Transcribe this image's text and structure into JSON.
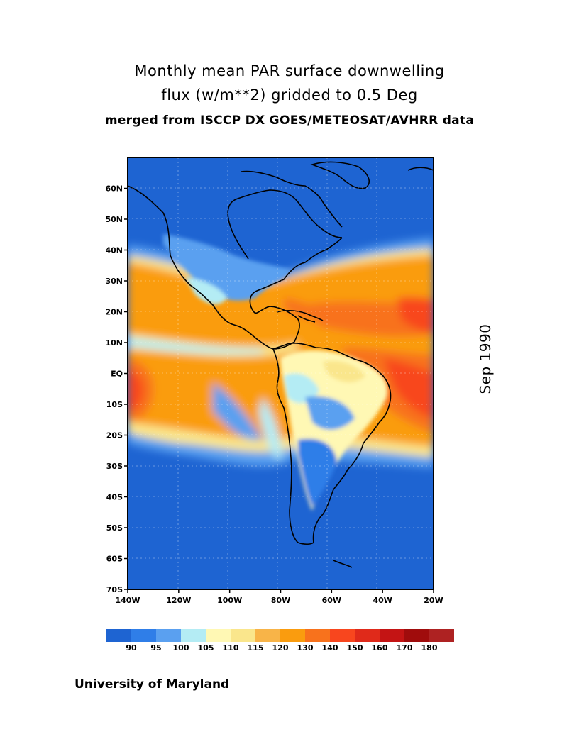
{
  "title": {
    "line1": "Monthly mean PAR surface downwelling",
    "line2": "flux (w/m**2) gridded to 0.5 Deg",
    "line3": "merged from ISCCP DX GOES/METEOSAT/AVHRR data"
  },
  "date_label": "Sep 1990",
  "footer": "University of Maryland",
  "map": {
    "lon_range": [
      -140,
      -20
    ],
    "lat_range": [
      -70,
      70
    ],
    "lat_ticks": [
      {
        "value": 60,
        "label": "60N"
      },
      {
        "value": 50,
        "label": "50N"
      },
      {
        "value": 40,
        "label": "40N"
      },
      {
        "value": 30,
        "label": "30N"
      },
      {
        "value": 20,
        "label": "20N"
      },
      {
        "value": 10,
        "label": "10N"
      },
      {
        "value": 0,
        "label": "EQ"
      },
      {
        "value": -10,
        "label": "10S"
      },
      {
        "value": -20,
        "label": "20S"
      },
      {
        "value": -30,
        "label": "30S"
      },
      {
        "value": -40,
        "label": "40S"
      },
      {
        "value": -50,
        "label": "50S"
      },
      {
        "value": -60,
        "label": "60S"
      },
      {
        "value": -70,
        "label": "70S"
      }
    ],
    "lon_ticks": [
      {
        "value": -140,
        "label": "140W"
      },
      {
        "value": -120,
        "label": "120W"
      },
      {
        "value": -100,
        "label": "100W"
      },
      {
        "value": -80,
        "label": "80W"
      },
      {
        "value": -60,
        "label": "60W"
      },
      {
        "value": -40,
        "label": "40W"
      },
      {
        "value": -20,
        "label": "20W"
      }
    ],
    "grid": true
  },
  "colorbar": {
    "colors": [
      "#1e64d2",
      "#2f7ee8",
      "#5aa0f0",
      "#b4ecf4",
      "#fff8b4",
      "#fae68c",
      "#f8b448",
      "#fa9c0e",
      "#f8721c",
      "#f8461e",
      "#e02a1a",
      "#c41414",
      "#a00c0c",
      "#ae2222"
    ],
    "labels": [
      "90",
      "95",
      "100",
      "105",
      "110",
      "115",
      "120",
      "130",
      "140",
      "150",
      "160",
      "170",
      "180"
    ]
  }
}
